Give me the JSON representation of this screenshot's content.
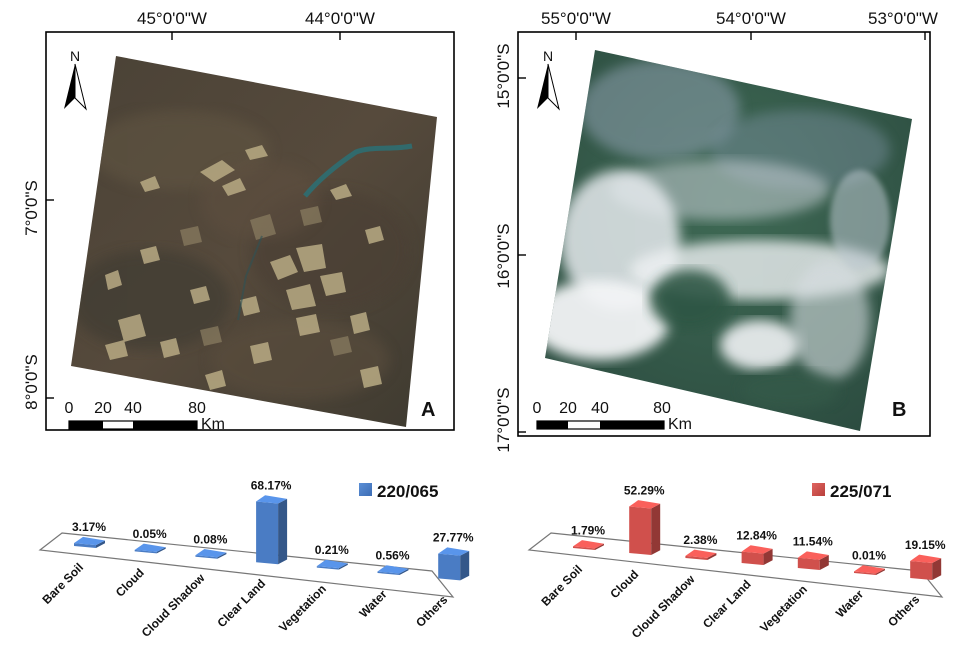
{
  "panels": [
    {
      "letter": "A",
      "north": "N",
      "top_ticks": [
        "45°0'0\"W",
        "44°0'0\"W"
      ],
      "left_ticks": [
        "7°0'0\"S",
        "8°0'0\"S"
      ],
      "scale_ticks": [
        "0",
        "20",
        "40",
        "80"
      ],
      "scale_unit": "Km",
      "image": "satellite-scene-brown-terrain",
      "chart": {
        "legend": "220/065",
        "color": "#4a7cc4",
        "categories": [
          "Bare Soil",
          "Cloud",
          "Cloud Shadow",
          "Clear Land",
          "Vegetation",
          "Water",
          "Others"
        ],
        "values": [
          3.17,
          0.05,
          0.08,
          68.17,
          0.21,
          0.56,
          27.77
        ],
        "labels": [
          "3.17%",
          "0.05%",
          "0.08%",
          "68.17%",
          "0.21%",
          "0.56%",
          "27.77%"
        ]
      }
    },
    {
      "letter": "B",
      "north": "N",
      "top_ticks": [
        "55°0'0\"W",
        "54°0'0\"W",
        "53°0'0\"W"
      ],
      "left_ticks": [
        "15°0'0\"S",
        "16°0'0\"S",
        "17°0'0\"S"
      ],
      "scale_ticks": [
        "0",
        "20",
        "40",
        "80"
      ],
      "scale_unit": "Km",
      "image": "satellite-scene-cloud-covered",
      "chart": {
        "legend": "225/071",
        "color": "#d0504c",
        "categories": [
          "Bare Soil",
          "Cloud",
          "Cloud Shadow",
          "Clear Land",
          "Vegetation",
          "Water",
          "Others"
        ],
        "values": [
          1.79,
          52.29,
          2.38,
          12.84,
          11.54,
          0.01,
          19.15
        ],
        "labels": [
          "1.79%",
          "52.29%",
          "2.38%",
          "12.84%",
          "11.54%",
          "0.01%",
          "19.15%"
        ]
      }
    }
  ],
  "chart_data": [
    {
      "type": "bar",
      "title": "220/065",
      "categories": [
        "Bare Soil",
        "Cloud",
        "Cloud Shadow",
        "Clear Land",
        "Vegetation",
        "Water",
        "Others"
      ],
      "series": [
        {
          "name": "220/065",
          "values": [
            3.17,
            0.05,
            0.08,
            68.17,
            0.21,
            0.56,
            27.77
          ]
        }
      ]
    },
    {
      "type": "bar",
      "title": "225/071",
      "categories": [
        "Bare Soil",
        "Cloud",
        "Cloud Shadow",
        "Clear Land",
        "Vegetation",
        "Water",
        "Others"
      ],
      "series": [
        {
          "name": "225/071",
          "values": [
            1.79,
            52.29,
            2.38,
            12.84,
            11.54,
            0.01,
            19.15
          ]
        }
      ]
    }
  ]
}
